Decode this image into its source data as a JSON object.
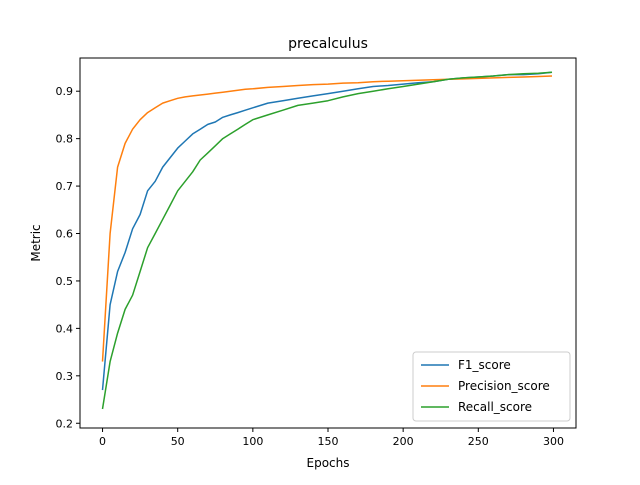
{
  "chart_data": {
    "type": "line",
    "title": "precalculus",
    "xlabel": "Epochs",
    "ylabel": "Metric",
    "xlim": [
      -15,
      315
    ],
    "ylim": [
      0.19,
      0.97
    ],
    "xticks": [
      0,
      50,
      100,
      150,
      200,
      250,
      300
    ],
    "yticks": [
      0.2,
      0.3,
      0.4,
      0.5,
      0.6,
      0.7,
      0.8,
      0.9
    ],
    "ytick_labels": [
      "0.2",
      "0.3",
      "0.4",
      "0.5",
      "0.6",
      "0.7",
      "0.8",
      "0.9"
    ],
    "grid": false,
    "legend_position": "lower-right",
    "x": [
      0,
      5,
      10,
      15,
      20,
      25,
      30,
      35,
      40,
      45,
      50,
      55,
      60,
      65,
      70,
      75,
      80,
      85,
      90,
      95,
      100,
      110,
      120,
      130,
      140,
      150,
      160,
      170,
      180,
      190,
      200,
      210,
      220,
      230,
      240,
      250,
      260,
      270,
      280,
      290,
      299
    ],
    "series": [
      {
        "name": "F1_score",
        "color": "#1f77b4",
        "values": [
          0.27,
          0.45,
          0.52,
          0.56,
          0.61,
          0.64,
          0.69,
          0.71,
          0.74,
          0.76,
          0.78,
          0.795,
          0.81,
          0.82,
          0.83,
          0.835,
          0.845,
          0.85,
          0.855,
          0.86,
          0.865,
          0.875,
          0.88,
          0.885,
          0.89,
          0.895,
          0.9,
          0.905,
          0.91,
          0.912,
          0.915,
          0.918,
          0.92,
          0.925,
          0.928,
          0.93,
          0.932,
          0.935,
          0.935,
          0.937,
          0.94
        ]
      },
      {
        "name": "Precision_score",
        "color": "#ff7f0e",
        "values": [
          0.33,
          0.6,
          0.74,
          0.79,
          0.82,
          0.84,
          0.855,
          0.865,
          0.875,
          0.88,
          0.885,
          0.888,
          0.89,
          0.892,
          0.894,
          0.896,
          0.898,
          0.9,
          0.902,
          0.904,
          0.905,
          0.908,
          0.91,
          0.912,
          0.914,
          0.915,
          0.917,
          0.918,
          0.92,
          0.921,
          0.922,
          0.923,
          0.924,
          0.925,
          0.926,
          0.927,
          0.928,
          0.929,
          0.93,
          0.931,
          0.932
        ]
      },
      {
        "name": "Recall_score",
        "color": "#2ca02c",
        "values": [
          0.23,
          0.33,
          0.39,
          0.44,
          0.47,
          0.52,
          0.57,
          0.6,
          0.63,
          0.66,
          0.69,
          0.71,
          0.73,
          0.755,
          0.77,
          0.785,
          0.8,
          0.81,
          0.82,
          0.83,
          0.84,
          0.85,
          0.86,
          0.87,
          0.875,
          0.88,
          0.888,
          0.895,
          0.9,
          0.905,
          0.91,
          0.915,
          0.92,
          0.925,
          0.928,
          0.93,
          0.932,
          0.935,
          0.937,
          0.938,
          0.94
        ]
      }
    ]
  }
}
